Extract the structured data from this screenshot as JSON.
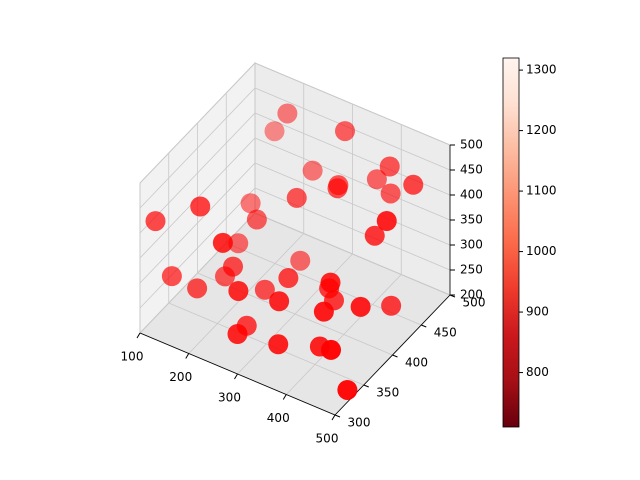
{
  "chart_data": {
    "type": "scatter3d",
    "x": [
      120,
      150,
      180,
      200,
      230,
      260,
      280,
      300,
      320,
      350,
      380,
      400,
      420,
      450,
      480,
      500,
      140,
      170,
      210,
      240,
      270,
      310,
      340,
      360,
      390,
      410,
      440,
      470,
      130,
      190,
      250,
      290,
      330,
      370,
      430,
      460,
      220,
      160,
      350,
      490
    ],
    "y": [
      310,
      450,
      380,
      320,
      490,
      350,
      420,
      300,
      470,
      330,
      400,
      480,
      360,
      440,
      310,
      390,
      500,
      340,
      410,
      460,
      300,
      380,
      440,
      320,
      490,
      350,
      420,
      370,
      330,
      480,
      390,
      310,
      450,
      400,
      340,
      470,
      360,
      420,
      500,
      330
    ],
    "z": [
      420,
      300,
      250,
      470,
      350,
      220,
      400,
      280,
      490,
      330,
      260,
      440,
      360,
      230,
      310,
      480,
      380,
      270,
      340,
      210,
      450,
      300,
      420,
      260,
      370,
      240,
      390,
      320,
      290,
      460,
      240,
      350,
      410,
      280,
      330,
      440,
      310,
      260,
      370,
      210
    ],
    "color": "#ff0000",
    "xlim": [
      100,
      500
    ],
    "xticks": [
      100,
      200,
      300,
      400,
      500
    ],
    "ylim": [
      300,
      500
    ],
    "yticks": [
      300,
      350,
      400,
      450,
      500
    ],
    "zlim": [
      200,
      500
    ],
    "zticks": [
      200,
      250,
      300,
      350,
      400,
      450,
      500
    ],
    "grid": true,
    "colorbar": {
      "colormap": "Reds_r",
      "clim": [
        710,
        1320
      ],
      "ticks": [
        800,
        900,
        1000,
        1100,
        1200,
        1300
      ]
    }
  }
}
